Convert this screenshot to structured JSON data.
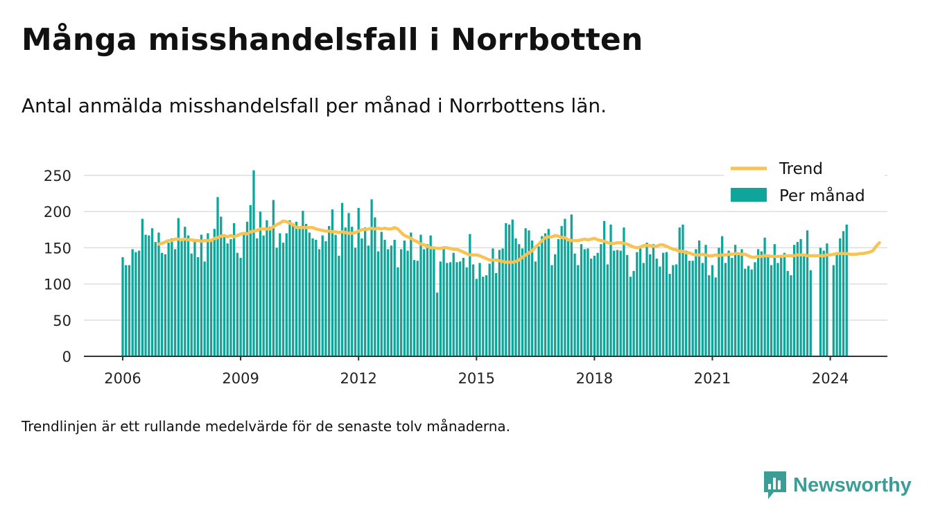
{
  "title": "Många misshandelsfall i Norrbotten",
  "subtitle": "Antal anmälda misshandelsfall per månad i Norrbottens län.",
  "note": "Trendlinjen är ett rullande medelvärde för de senaste tolv månaderna.",
  "brand": {
    "name": "Newsworthy",
    "icon": "newsworthy-logo-icon",
    "color": "#3c9c96"
  },
  "chart_data": {
    "type": "bar",
    "title": "Många misshandelsfall i Norrbotten",
    "subtitle": "Antal anmälda misshandelsfall per månad i Norrbottens län.",
    "xlabel": "",
    "ylabel": "",
    "ylim": [
      0,
      270
    ],
    "yticks": [
      0,
      50,
      100,
      150,
      200,
      250
    ],
    "xtick_labels": [
      "2006",
      "2009",
      "2012",
      "2015",
      "2018",
      "2021",
      "2024"
    ],
    "grid": true,
    "legend": {
      "placement": "top-right",
      "entries": [
        "Trend",
        "Per månad"
      ]
    },
    "colors": {
      "bars": "#0ea59a",
      "trend": "#f8c353",
      "grid": "#dddddd",
      "axis": "#333333"
    },
    "series": [
      {
        "name": "Per månad",
        "type": "bar",
        "start": "2006-01",
        "values": [
          137,
          126,
          126,
          148,
          144,
          146,
          190,
          168,
          167,
          177,
          158,
          171,
          143,
          141,
          157,
          163,
          148,
          191,
          162,
          179,
          167,
          142,
          161,
          137,
          168,
          131,
          170,
          162,
          176,
          220,
          193,
          166,
          156,
          162,
          184,
          143,
          136,
          170,
          186,
          209,
          257,
          163,
          200,
          167,
          188,
          179,
          216,
          150,
          170,
          157,
          170,
          188,
          183,
          186,
          178,
          201,
          183,
          171,
          163,
          161,
          148,
          167,
          159,
          180,
          203,
          168,
          139,
          212,
          178,
          198,
          179,
          150,
          205,
          163,
          178,
          153,
          217,
          192,
          145,
          172,
          161,
          148,
          153,
          161,
          123,
          148,
          160,
          146,
          171,
          133,
          132,
          168,
          148,
          155,
          167,
          148,
          88,
          131,
          152,
          129,
          130,
          143,
          130,
          131,
          136,
          123,
          169,
          127,
          107,
          129,
          110,
          112,
          128,
          149,
          115,
          147,
          149,
          184,
          182,
          189,
          163,
          155,
          149,
          177,
          174,
          160,
          131,
          152,
          166,
          170,
          176,
          126,
          141,
          162,
          180,
          190,
          159,
          196,
          142,
          126,
          155,
          148,
          149,
          135,
          139,
          143,
          155,
          187,
          127,
          182,
          146,
          147,
          146,
          178,
          140,
          110,
          118,
          144,
          152,
          129,
          157,
          141,
          155,
          135,
          124,
          143,
          144,
          114,
          126,
          127,
          178,
          182,
          146,
          132,
          132,
          148,
          160,
          129,
          154,
          112,
          126,
          109,
          150,
          166,
          129,
          146,
          136,
          154,
          140,
          148,
          121,
          125,
          120,
          130,
          148,
          145,
          164,
          139,
          126,
          155,
          129,
          137,
          143,
          118,
          112,
          154,
          158,
          162,
          141,
          174,
          119,
          0,
          0,
          150,
          146,
          156,
          0,
          126,
          140,
          163,
          173,
          182
        ]
      },
      {
        "name": "Trend",
        "type": "line",
        "start": "2006-12",
        "values": [
          155,
          156,
          158,
          160,
          160,
          162,
          162,
          161,
          162,
          161,
          161,
          160,
          160,
          159,
          160,
          160,
          160,
          163,
          164,
          166,
          167,
          165,
          167,
          165,
          167,
          169,
          170,
          169,
          172,
          173,
          174,
          176,
          176,
          176,
          176,
          179,
          182,
          184,
          187,
          186,
          184,
          182,
          178,
          178,
          178,
          178,
          178,
          178,
          176,
          175,
          174,
          173,
          173,
          172,
          172,
          171,
          172,
          171,
          170,
          170,
          171,
          173,
          175,
          175,
          176,
          177,
          176,
          177,
          176,
          177,
          176,
          176,
          178,
          176,
          171,
          167,
          165,
          163,
          160,
          158,
          155,
          154,
          152,
          150,
          150,
          149,
          149,
          150,
          150,
          149,
          148,
          148,
          146,
          144,
          142,
          140,
          140,
          140,
          139,
          137,
          135,
          133,
          133,
          133,
          132,
          131,
          130,
          130,
          130,
          131,
          133,
          137,
          140,
          143,
          146,
          151,
          155,
          160,
          164,
          165,
          165,
          167,
          166,
          164,
          164,
          161,
          160,
          160,
          160,
          161,
          162,
          161,
          162,
          163,
          161,
          160,
          159,
          157,
          156,
          156,
          157,
          157,
          156,
          155,
          153,
          151,
          150,
          151,
          153,
          153,
          153,
          152,
          152,
          154,
          154,
          152,
          150,
          148,
          147,
          145,
          145,
          143,
          143,
          141,
          140,
          140,
          141,
          140,
          139,
          139,
          140,
          139,
          140,
          140,
          141,
          141,
          142,
          142,
          141,
          141,
          139,
          137,
          137,
          138,
          138,
          139,
          139,
          138,
          138,
          138,
          138,
          139,
          139,
          139,
          139,
          140,
          140,
          140,
          139,
          139,
          139,
          139,
          139,
          139,
          140,
          140,
          141,
          142,
          142,
          142,
          142,
          141,
          141,
          141,
          142,
          142,
          143,
          144,
          146,
          152,
          157
        ]
      }
    ]
  }
}
